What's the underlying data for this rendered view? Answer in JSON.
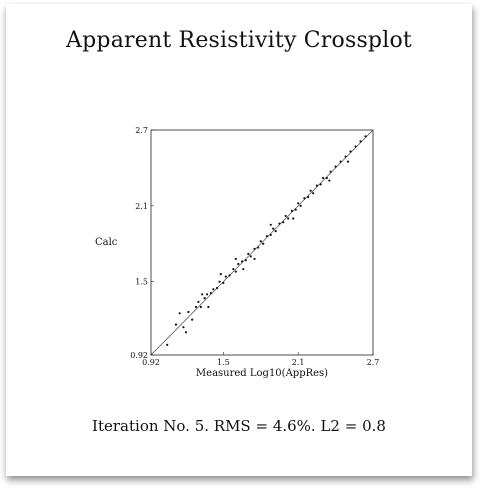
{
  "chart_data": {
    "type": "scatter",
    "title": "Apparent Resistivity Crossplot",
    "xlabel": "Measured Log10(AppRes)",
    "ylabel": "Calc",
    "xlim": [
      0.92,
      2.7
    ],
    "ylim": [
      0.92,
      2.7
    ],
    "x_ticks": [
      "0.92",
      "1.5",
      "2.1",
      "2.7"
    ],
    "y_ticks": [
      "0.92",
      "1.5",
      "2.1",
      "2.7"
    ],
    "reference_line": "y = x",
    "point_color": "#111122",
    "series": [
      {
        "name": "",
        "x": [
          1.05,
          1.12,
          1.18,
          1.22,
          1.25,
          1.28,
          1.3,
          1.32,
          1.35,
          1.37,
          1.4,
          1.42,
          1.45,
          1.47,
          1.5,
          1.52,
          1.55,
          1.58,
          1.6,
          1.62,
          1.65,
          1.68,
          1.7,
          1.72,
          1.75,
          1.78,
          1.8,
          1.82,
          1.85,
          1.88,
          1.9,
          1.92,
          1.95,
          1.98,
          2.0,
          2.02,
          2.05,
          2.08,
          2.1,
          2.12,
          2.15,
          2.18,
          2.2,
          2.22,
          2.25,
          2.28,
          2.3,
          2.33,
          2.36,
          2.4,
          2.44,
          2.48,
          2.52,
          2.56,
          2.6,
          2.64,
          1.15,
          1.2,
          1.33,
          1.38,
          1.6,
          1.75,
          2.35,
          2.5,
          1.48,
          1.66,
          1.88,
          2.06
        ],
        "y": [
          1.0,
          1.16,
          1.14,
          1.26,
          1.2,
          1.3,
          1.34,
          1.3,
          1.37,
          1.4,
          1.41,
          1.44,
          1.45,
          1.5,
          1.49,
          1.54,
          1.55,
          1.6,
          1.58,
          1.64,
          1.66,
          1.67,
          1.72,
          1.7,
          1.76,
          1.77,
          1.82,
          1.8,
          1.86,
          1.87,
          1.92,
          1.9,
          1.96,
          1.97,
          2.02,
          2.0,
          2.06,
          2.07,
          2.12,
          2.1,
          2.16,
          2.17,
          2.22,
          2.2,
          2.26,
          2.27,
          2.32,
          2.32,
          2.37,
          2.41,
          2.45,
          2.49,
          2.53,
          2.57,
          2.61,
          2.65,
          1.25,
          1.1,
          1.4,
          1.3,
          1.68,
          1.68,
          2.3,
          2.45,
          1.56,
          1.6,
          1.95,
          2.0
        ]
      }
    ]
  },
  "footer": "Iteration No. 5.  RMS = 4.6%.  L2 = 0.8"
}
